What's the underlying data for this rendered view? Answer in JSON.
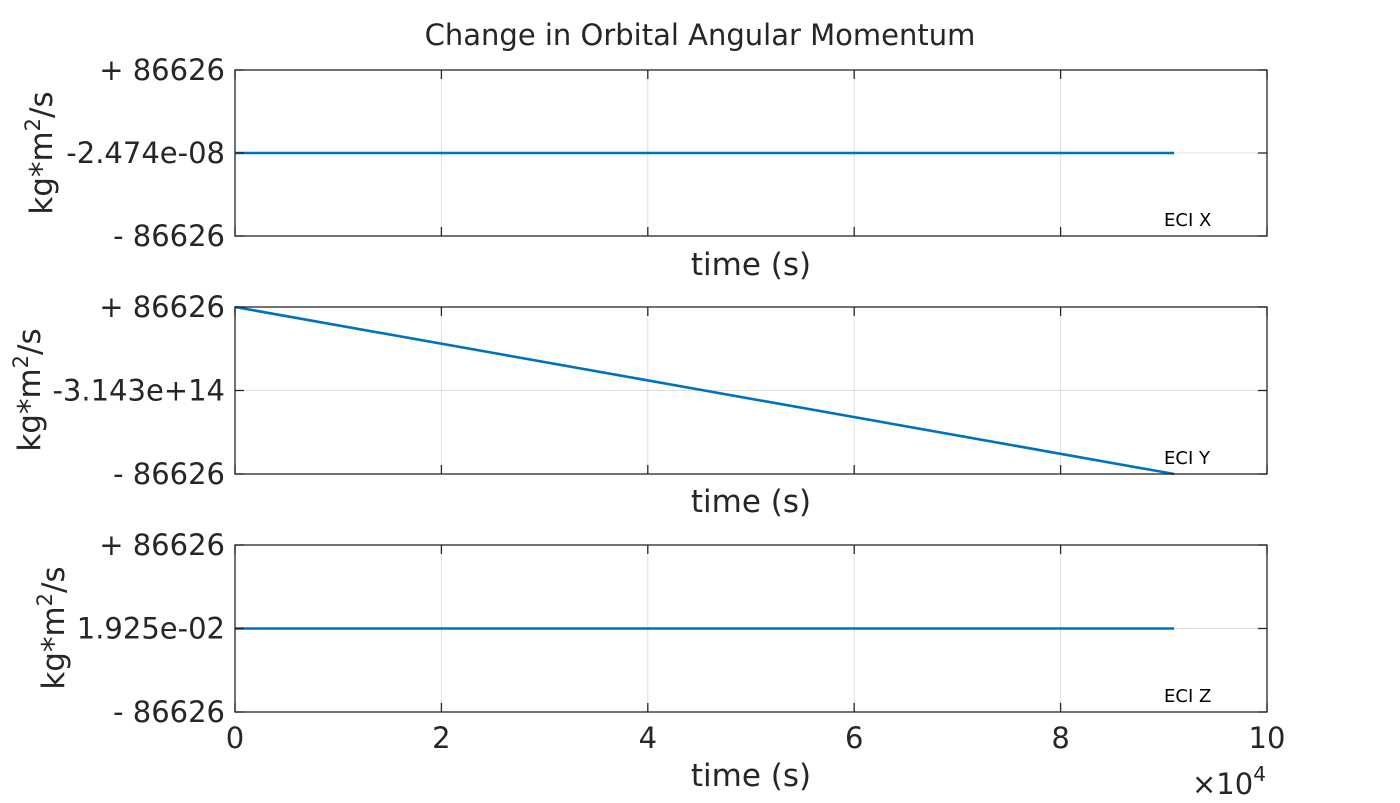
{
  "chart_data": {
    "type": "line",
    "title": "Change in Orbital Angular Momentum",
    "x_multiplier": "×10",
    "x_multiplier_exponent": "4",
    "xlim": [
      0,
      100000
    ],
    "x_ticks": [
      0,
      20000,
      40000,
      60000,
      80000,
      100000
    ],
    "x_tick_labels": [
      "0",
      "2",
      "4",
      "6",
      "8",
      "10"
    ],
    "grid": true,
    "line_color": "#0072bd",
    "subplots": [
      {
        "ylabel": "kg*m",
        "ylabel_sup": "2",
        "ylabel_suffix": "/s",
        "xlabel": "time (s)",
        "annotation": "ECI X",
        "y_tick_labels": [
          "+ 86626",
          "-2.474e-08",
          "- 86626"
        ],
        "ylim": [
          -86626,
          86626
        ],
        "series": [
          {
            "x": [
              0,
              91000
            ],
            "y": [
              0,
              0
            ]
          }
        ]
      },
      {
        "ylabel": "kg*m",
        "ylabel_sup": "2",
        "ylabel_suffix": "/s",
        "xlabel": "time (s)",
        "annotation": "ECI Y",
        "y_tick_labels": [
          "+ 86626",
          "-3.143e+14",
          "- 86626"
        ],
        "ylim": [
          -86626,
          86626
        ],
        "series": [
          {
            "x": [
              0,
              91000
            ],
            "y": [
              86626,
              -86626
            ]
          }
        ]
      },
      {
        "ylabel": "kg*m",
        "ylabel_sup": "2",
        "ylabel_suffix": "/s",
        "xlabel": "time (s)",
        "annotation": "ECI Z",
        "y_tick_labels": [
          "+ 86626",
          "1.925e-02",
          "- 86626"
        ],
        "ylim": [
          -86626,
          86626
        ],
        "series": [
          {
            "x": [
              0,
              91000
            ],
            "y": [
              0,
              0
            ]
          }
        ]
      }
    ]
  }
}
